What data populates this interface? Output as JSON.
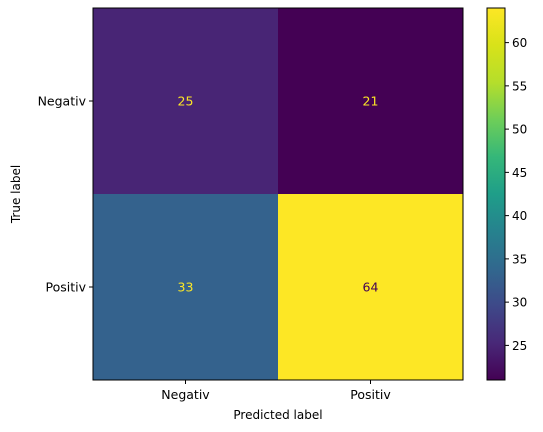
{
  "chart_data": {
    "type": "heatmap",
    "xlabel": "Predicted label",
    "ylabel": "True label",
    "x_categories": [
      "Negativ",
      "Positiv"
    ],
    "y_categories": [
      "Negativ",
      "Positiv"
    ],
    "values": [
      [
        25,
        21
      ],
      [
        33,
        64
      ]
    ],
    "colormap": "viridis",
    "colorbar": {
      "range": [
        21,
        64
      ],
      "ticks": [
        25,
        30,
        35,
        40,
        45,
        50,
        55,
        60
      ]
    }
  }
}
